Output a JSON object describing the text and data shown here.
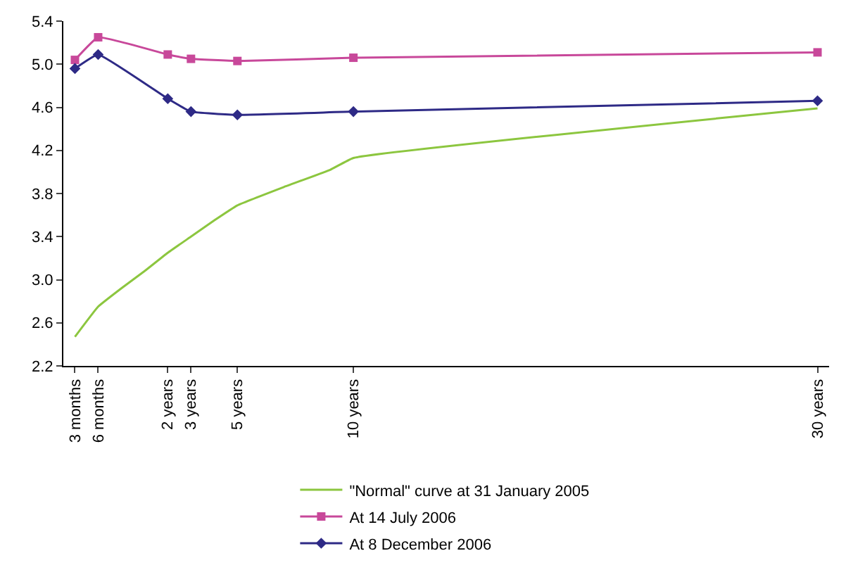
{
  "chart_data": {
    "type": "line",
    "categories": [
      "3 months",
      "6 months",
      null,
      null,
      "2 years",
      "3 years",
      null,
      "5 years",
      null,
      null,
      null,
      null,
      "10 years",
      null,
      null,
      null,
      null,
      null,
      null,
      null,
      null,
      null,
      null,
      null,
      null,
      null,
      null,
      null,
      null,
      null,
      null,
      null,
      "30 years"
    ],
    "ylim": [
      2.2,
      5.4
    ],
    "yticks": [
      2.2,
      2.6,
      {
        "value": 3,
        "label": "3.0"
      },
      3.4,
      3.8,
      4.2,
      4.6,
      {
        "value": 5,
        "label": "5.0"
      },
      5.4
    ],
    "series": [
      {
        "name": "\"Normal\" curve at 31 January 2005",
        "color": "#8cc63f",
        "marker": "none",
        "values": [
          2.47,
          2.75,
          2.92,
          3.08,
          3.25,
          3.4,
          3.55,
          3.69,
          null,
          3.86,
          null,
          4.02,
          4.13,
          null,
          null,
          null,
          null,
          null,
          null,
          null,
          null,
          null,
          null,
          null,
          null,
          null,
          null,
          null,
          null,
          null,
          null,
          null,
          4.59
        ]
      },
      {
        "name": "At 14 July 2006",
        "color": "#c8489a",
        "marker": "square",
        "values": [
          5.04,
          5.25,
          null,
          null,
          5.09,
          5.05,
          null,
          5.03,
          null,
          null,
          null,
          null,
          5.06,
          null,
          null,
          null,
          null,
          null,
          null,
          null,
          null,
          null,
          null,
          null,
          null,
          null,
          null,
          null,
          null,
          null,
          null,
          null,
          5.11
        ]
      },
      {
        "name": "At 8 December 2006",
        "color": "#2e2a86",
        "marker": "diamond",
        "values": [
          4.96,
          5.09,
          null,
          null,
          4.68,
          4.56,
          null,
          4.53,
          null,
          null,
          null,
          null,
          4.56,
          null,
          null,
          null,
          null,
          null,
          null,
          null,
          null,
          null,
          null,
          null,
          null,
          null,
          null,
          null,
          null,
          null,
          null,
          null,
          4.66
        ]
      }
    ],
    "line_style": "solid",
    "grid": false,
    "legend": "bottom"
  }
}
